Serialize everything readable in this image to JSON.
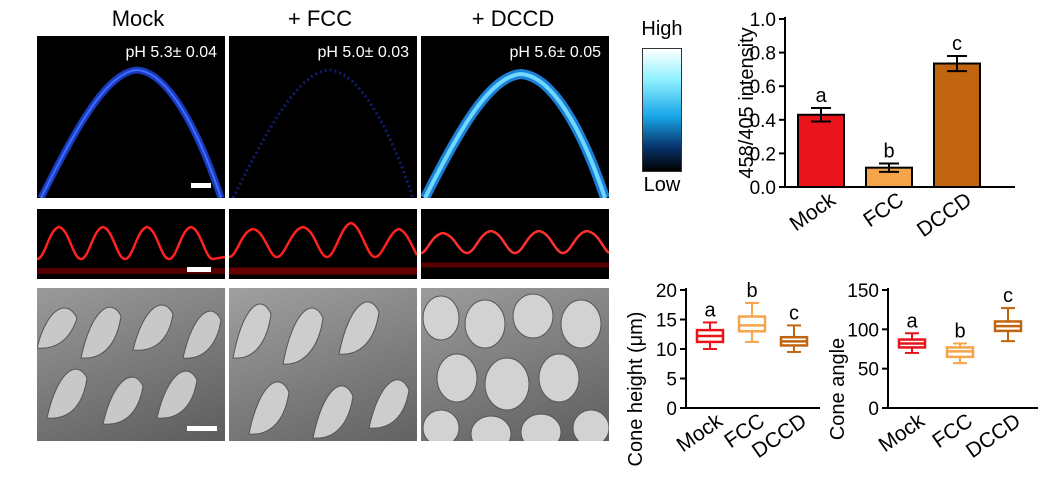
{
  "conditions": [
    {
      "label": "Mock",
      "ph": "pH 5.3± 0.04"
    },
    {
      "label": "+ FCC",
      "ph": "pH 5.0± 0.03"
    },
    {
      "label": "+ DCCD",
      "ph": "pH 5.6± 0.05"
    }
  ],
  "colorbar": {
    "high": "High",
    "low": "Low"
  },
  "colors": {
    "mock": "#e8131b",
    "fcc": "#f6a44a",
    "dccd": "#c0640f",
    "fluor_blue": "#1f4fe0",
    "fluor_cyan": "#3bbcf0",
    "red_signal": "#e01010"
  },
  "chart_data": [
    {
      "type": "bar",
      "categories": [
        "Mock",
        "FCC",
        "DCCD"
      ],
      "values": [
        0.43,
        0.115,
        0.735
      ],
      "errors": [
        0.04,
        0.025,
        0.045
      ],
      "significance": [
        "a",
        "b",
        "c"
      ],
      "ylabel": "458/405 intensity",
      "ylim": [
        0,
        1.0
      ],
      "yticks": [
        "0.0",
        "0.2",
        "0.4",
        "0.6",
        "0.8",
        "1.0"
      ]
    },
    {
      "type": "box",
      "categories": [
        "Mock",
        "FCC",
        "DCCD"
      ],
      "boxes": [
        {
          "min": 10,
          "q1": 11.2,
          "median": 12.2,
          "q3": 13.2,
          "max": 14.5
        },
        {
          "min": 11.2,
          "q1": 13.0,
          "median": 14.0,
          "q3": 15.5,
          "max": 17.8
        },
        {
          "min": 9.5,
          "q1": 10.6,
          "median": 11.3,
          "q3": 12.0,
          "max": 14.0
        }
      ],
      "significance": [
        "a",
        "b",
        "c"
      ],
      "ylabel": "Cone height (μm)",
      "ylim": [
        0,
        20
      ],
      "yticks": [
        "0",
        "5",
        "10",
        "15",
        "20"
      ]
    },
    {
      "type": "box",
      "categories": [
        "Mock",
        "FCC",
        "DCCD"
      ],
      "boxes": [
        {
          "min": 70,
          "q1": 77,
          "median": 82,
          "q3": 87,
          "max": 95
        },
        {
          "min": 57,
          "q1": 65,
          "median": 72,
          "q3": 77,
          "max": 82
        },
        {
          "min": 85,
          "q1": 98,
          "median": 104,
          "q3": 110,
          "max": 127
        }
      ],
      "significance": [
        "a",
        "b",
        "c"
      ],
      "ylabel": "Cone angle",
      "ylim": [
        0,
        150
      ],
      "yticks": [
        "0",
        "50",
        "100",
        "150"
      ]
    }
  ]
}
